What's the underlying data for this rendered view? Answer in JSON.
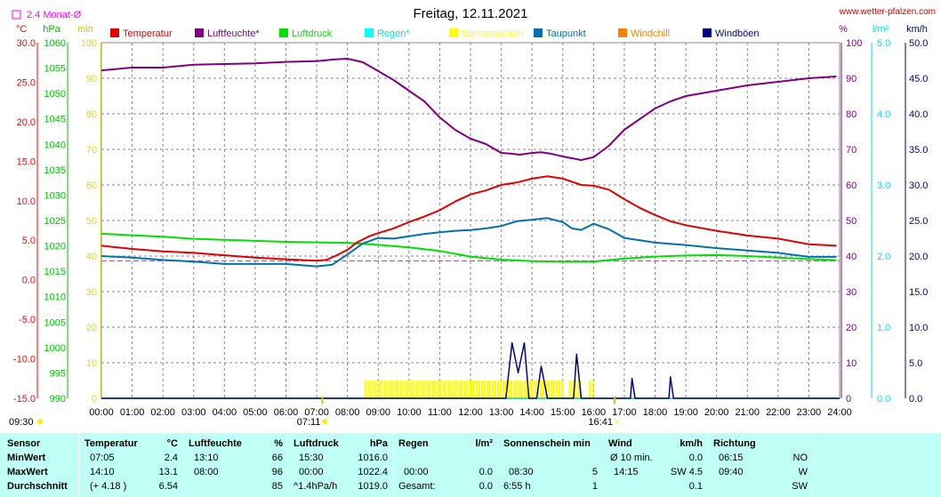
{
  "page": {
    "title": "Freitag, 12.11.2021",
    "website": "www.wetter-pfalzen.com",
    "avg_marker_label": "2.4 Monat-Ø",
    "axis_units": {
      "temp": "°C",
      "pressure": "hPa",
      "sun": "min",
      "humidity": "%",
      "rain": "l/m²",
      "wind": "km/h"
    },
    "sunrise": "07:11",
    "sunset": "16:41",
    "current_time": "09:30"
  },
  "legend": [
    {
      "label": "Temperatur",
      "color": "#e00000"
    },
    {
      "label": "Luftfeuchte*",
      "color": "#800080"
    },
    {
      "label": "Luftdruck",
      "color": "#00e000"
    },
    {
      "label": "Regen*",
      "color": "#00ffff"
    },
    {
      "label": "Sonnenschein",
      "color": "#ffff00"
    },
    {
      "label": "Taupunkt",
      "color": "#0070b0"
    },
    {
      "label": "Windchill",
      "color": "#ff8000"
    },
    {
      "label": "Windböen",
      "color": "#000080"
    }
  ],
  "colors": {
    "temp_axis": "#ff0000",
    "pressure_axis": "#00c000",
    "sun_axis": "#ffff00",
    "humidity_axis": "#800080",
    "rain_axis": "#00e0e0",
    "wind_axis": "#000080",
    "grid": "#888888",
    "stats_bg": "#bffff5",
    "avg_line": "#ff00ff"
  },
  "axes": {
    "temp_ticks": [
      "30.0",
      "25.0",
      "20.0",
      "15.0",
      "10.0",
      "5.0",
      "0.0",
      "-5.0",
      "-10.0",
      "-15.0"
    ],
    "pressure_ticks": [
      "1060",
      "1055",
      "1050",
      "1045",
      "1040",
      "1035",
      "1030",
      "1025",
      "1020",
      "1015",
      "1010",
      "1005",
      "1000",
      "995",
      "990"
    ],
    "sun_ticks": [
      "100",
      "90",
      "80",
      "70",
      "60",
      "50",
      "40",
      "30",
      "20",
      "10",
      "0"
    ],
    "humidity_ticks": [
      "100",
      "90",
      "80",
      "70",
      "60",
      "50",
      "40",
      "30",
      "20",
      "10",
      "0"
    ],
    "rain_ticks": [
      "5.0",
      "4.0",
      "3.0",
      "2.0",
      "1.0",
      "0.0"
    ],
    "wind_ticks": [
      "50.0",
      "45.0",
      "40.0",
      "35.0",
      "30.0",
      "25.0",
      "20.0",
      "15.0",
      "10.0",
      "5.0",
      "0.0"
    ],
    "time_ticks": [
      "00:00",
      "01:00",
      "02:00",
      "03:00",
      "04:00",
      "05:00",
      "06:00",
      "07:00",
      "08:00",
      "09:00",
      "10:00",
      "11:00",
      "12:00",
      "13:00",
      "14:00",
      "15:00",
      "16:00",
      "17:00",
      "18:00",
      "19:00",
      "20:00",
      "21:00",
      "22:00",
      "23:00",
      "24:00"
    ]
  },
  "chart_data": {
    "type": "line",
    "title": "Freitag, 12.11.2021",
    "x_unit": "hour of day",
    "xlim": [
      0,
      24
    ],
    "grid": true,
    "legend_position": "top",
    "reference_lines": [
      {
        "name": "2.4 Monat-Ø",
        "axis": "temp",
        "value": 2.4
      }
    ],
    "series": [
      {
        "name": "Temperatur",
        "axis": "temp",
        "unit": "°C",
        "ylim": [
          -15,
          30
        ],
        "x": [
          0,
          1,
          2,
          3,
          4,
          5,
          6,
          7,
          7.3,
          7.6,
          8,
          8.3,
          8.7,
          9,
          9.5,
          10,
          10.5,
          11,
          11.5,
          12,
          12.5,
          13,
          13.5,
          14,
          14.5,
          15,
          15.3,
          15.6,
          16,
          16.5,
          17,
          17.5,
          18,
          18.5,
          19,
          20,
          21,
          22,
          23,
          23.9
        ],
        "y": [
          4.3,
          3.9,
          3.6,
          3.4,
          3.1,
          2.8,
          2.6,
          2.4,
          2.5,
          3.0,
          3.8,
          4.7,
          5.5,
          5.9,
          6.5,
          7.3,
          8.0,
          8.8,
          9.9,
          10.8,
          11.3,
          12.0,
          12.3,
          12.8,
          13.1,
          12.8,
          12.4,
          12.0,
          11.9,
          11.4,
          10.2,
          9.1,
          8.2,
          7.4,
          6.9,
          6.2,
          5.6,
          5.2,
          4.5,
          4.3
        ]
      },
      {
        "name": "Luftfeuchte*",
        "axis": "humidity",
        "unit": "%",
        "ylim": [
          0,
          100
        ],
        "x": [
          0,
          1,
          2,
          3,
          4,
          5,
          6,
          7,
          7.6,
          8,
          8.5,
          9,
          9.5,
          10,
          10.5,
          11,
          11.5,
          12,
          12.5,
          13,
          13.3,
          13.6,
          14,
          14.3,
          14.6,
          15,
          15.3,
          15.6,
          16,
          16.5,
          17,
          17.5,
          18,
          18.5,
          19,
          20,
          21,
          22,
          23,
          23.9
        ],
        "y": [
          92.2,
          93.0,
          93.0,
          93.8,
          94.0,
          94.2,
          94.6,
          94.8,
          95.3,
          95.5,
          94.5,
          92.0,
          89.5,
          86.5,
          83.5,
          79.0,
          75.5,
          73.0,
          71.5,
          69.0,
          68.8,
          68.5,
          69.0,
          69.2,
          68.8,
          68.0,
          67.5,
          67.0,
          67.8,
          71.0,
          75.5,
          78.5,
          81.5,
          83.5,
          85.0,
          86.5,
          88.0,
          89.0,
          90.0,
          90.5
        ]
      },
      {
        "name": "Luftdruck",
        "axis": "pressure",
        "unit": "hPa",
        "ylim": [
          990,
          1060
        ],
        "x": [
          0,
          1,
          2,
          3,
          4,
          5,
          6,
          7,
          8,
          9,
          10,
          11,
          12,
          13,
          14,
          15,
          16,
          17,
          18,
          19,
          20,
          21,
          22,
          23,
          23.9
        ],
        "y": [
          1022.4,
          1022.1,
          1021.8,
          1021.4,
          1021.2,
          1021.0,
          1020.8,
          1020.7,
          1020.6,
          1020.2,
          1019.7,
          1019.0,
          1017.9,
          1017.3,
          1017.0,
          1016.9,
          1016.9,
          1017.5,
          1017.9,
          1018.1,
          1018.2,
          1018.0,
          1017.7,
          1017.4,
          1017.2
        ]
      },
      {
        "name": "Taupunkt",
        "axis": "temp",
        "unit": "°C",
        "ylim": [
          -15,
          30
        ],
        "x": [
          0,
          1,
          2,
          3,
          4,
          5,
          6,
          7,
          7.5,
          8,
          8.5,
          9,
          9.5,
          10,
          10.5,
          11,
          11.5,
          12,
          12.5,
          13,
          13.5,
          14,
          14.5,
          15,
          15.3,
          15.6,
          16,
          16.5,
          17,
          17.5,
          18,
          19,
          20,
          21,
          22,
          23,
          23.9
        ],
        "y": [
          3.0,
          2.8,
          2.5,
          2.3,
          2.0,
          2.0,
          2.0,
          1.7,
          1.9,
          3.2,
          4.6,
          5.3,
          5.2,
          5.5,
          5.8,
          6.0,
          6.2,
          6.3,
          6.5,
          6.8,
          7.4,
          7.6,
          7.8,
          7.3,
          6.5,
          6.3,
          7.1,
          6.4,
          5.3,
          5.0,
          4.7,
          4.4,
          4.0,
          3.7,
          3.4,
          2.9,
          2.9
        ]
      },
      {
        "name": "Windböen",
        "axis": "wind",
        "unit": "km/h",
        "ylim": [
          0,
          50
        ],
        "x": [
          0,
          13.15,
          13.35,
          13.55,
          13.75,
          13.9,
          14.15,
          14.3,
          14.5,
          14.75,
          15.35,
          15.45,
          15.6,
          17.2,
          17.25,
          17.35,
          18.45,
          18.5,
          18.6,
          24
        ],
        "y": [
          0,
          0,
          7.8,
          3.6,
          7.8,
          0,
          0,
          4.5,
          0,
          0,
          0,
          6.2,
          0,
          0,
          2.8,
          0,
          0,
          3.0,
          0,
          0
        ]
      },
      {
        "name": "Regen*",
        "axis": "rain",
        "unit": "l/m²",
        "ylim": [
          0,
          5
        ],
        "x": [
          0,
          24
        ],
        "y": [
          0,
          0
        ]
      }
    ],
    "sunshine_minutes": {
      "axis": "sun",
      "unit": "min",
      "intervals": [
        {
          "start": 8.55,
          "end": 8.9,
          "value": 5
        },
        {
          "start": 9.0,
          "end": 11.95,
          "value": 5
        },
        {
          "start": 12.0,
          "end": 15.0,
          "value": 5
        },
        {
          "start": 15.2,
          "end": 15.55,
          "value": 5
        },
        {
          "start": 15.85,
          "end": 15.95,
          "value": 5
        }
      ]
    }
  },
  "stats": {
    "row_labels": [
      "Sensor",
      "MinWert",
      "MaxWert",
      "Durchschnitt"
    ],
    "columns": [
      {
        "title": "Temperatur",
        "unit": "°C",
        "rows": [
          [
            "07:05",
            "2.4"
          ],
          [
            "14:10",
            "13.1"
          ],
          [
            "(+ 4.18 )",
            "6.54"
          ]
        ]
      },
      {
        "title": "Luftfeuchte",
        "unit": "%",
        "rows": [
          [
            "13:10",
            "66"
          ],
          [
            "08:00",
            "96"
          ],
          [
            "",
            "85"
          ]
        ]
      },
      {
        "title": "Luftdruck",
        "unit": "hPa",
        "rows": [
          [
            "15:30",
            "1016.0"
          ],
          [
            "00:00",
            "1022.4"
          ],
          [
            "^1.4hPa/h",
            "1019.0"
          ]
        ]
      },
      {
        "title": "Regen",
        "unit": "l/m²",
        "rows": [
          [
            "",
            ""
          ],
          [
            "00:00",
            "0.0"
          ],
          [
            "Gesamt:",
            "0.0"
          ]
        ]
      },
      {
        "title": "Sonnenschein min",
        "unit": "",
        "rows": [
          [
            "",
            ""
          ],
          [
            "08:30",
            "5"
          ],
          [
            "6:55 h",
            "1"
          ]
        ]
      },
      {
        "title": "Wind",
        "unit": "km/h",
        "rows": [
          [
            "Ø 10 min.",
            "0.0"
          ],
          [
            "14:15",
            "SW 4.5"
          ],
          [
            "",
            "0.1"
          ]
        ]
      },
      {
        "title": "Richtung",
        "unit": "",
        "rows": [
          [
            "06:15",
            "NO"
          ],
          [
            "09:40",
            "W"
          ],
          [
            "",
            "SW"
          ]
        ]
      }
    ]
  }
}
